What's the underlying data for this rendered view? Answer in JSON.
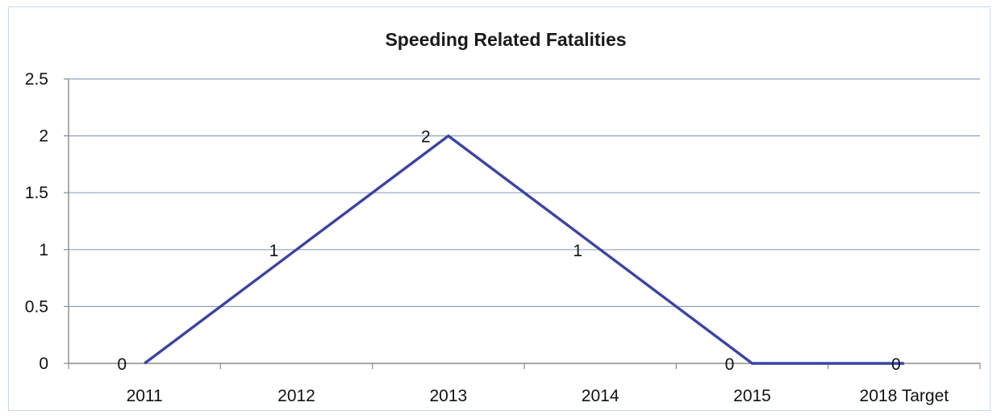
{
  "chart_data": {
    "type": "line",
    "title": "Speeding Related Fatalities",
    "xlabel": "",
    "ylabel": "",
    "categories": [
      "2011",
      "2012",
      "2013",
      "2014",
      "2015",
      "2018 Target"
    ],
    "series": [
      {
        "values": [
          0,
          1,
          2,
          1,
          0,
          0
        ],
        "color": "#3a44a4"
      }
    ],
    "data_labels": [
      "0",
      "1",
      "2",
      "1",
      "0",
      "0"
    ],
    "ylim": [
      0,
      2.5
    ],
    "yticks": [
      "0",
      "0.5",
      "1",
      "1.5",
      "2",
      "2.5"
    ],
    "grid": true,
    "legend": "none",
    "gridline_color": "#8fa3bf"
  }
}
